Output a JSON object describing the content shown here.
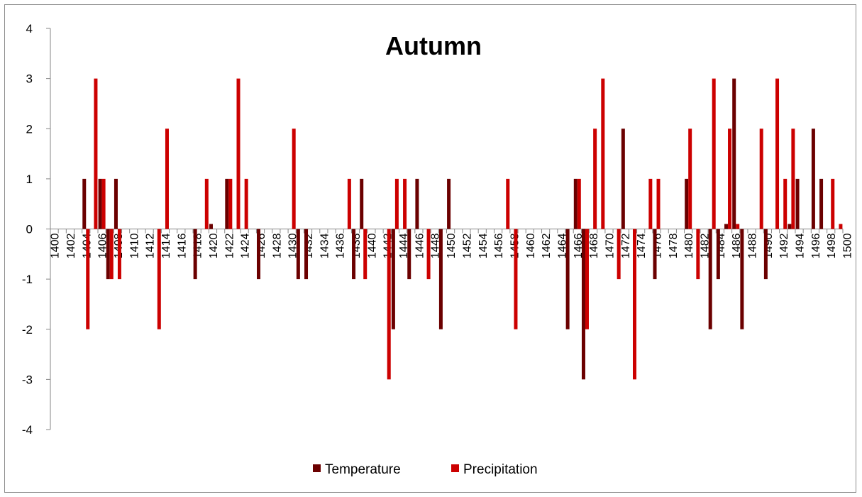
{
  "chart_data": {
    "type": "bar",
    "title": "Autumn",
    "xlabel": "",
    "ylabel": "",
    "ylim": [
      -4,
      4
    ],
    "yticks": [
      "-4",
      "-3",
      "-2",
      "-1",
      "0",
      "1",
      "2",
      "3",
      "4"
    ],
    "x_range": [
      1400,
      1500
    ],
    "x_tick_labels": [
      "1400",
      "1402",
      "1404",
      "1406",
      "1408",
      "1410",
      "1412",
      "1414",
      "1416",
      "1418",
      "1420",
      "1422",
      "1424",
      "1426",
      "1428",
      "1430",
      "1432",
      "1434",
      "1436",
      "1438",
      "1440",
      "1442",
      "1444",
      "1446",
      "1448",
      "1450",
      "1452",
      "1454",
      "1456",
      "1458",
      "1460",
      "1462",
      "1464",
      "1466",
      "1468",
      "1470",
      "1472",
      "1474",
      "1476",
      "1478",
      "1480",
      "1482",
      "1484",
      "1486",
      "1488",
      "1490",
      "1492",
      "1494",
      "1496",
      "1498",
      "1500"
    ],
    "grid": false,
    "legend_position": "bottom",
    "series": [
      {
        "name": "Temperature",
        "color": "#6b0000",
        "points": [
          {
            "x": 1404,
            "y": 1
          },
          {
            "x": 1406,
            "y": 1
          },
          {
            "x": 1407,
            "y": -1
          },
          {
            "x": 1408,
            "y": 1
          },
          {
            "x": 1418,
            "y": -1
          },
          {
            "x": 1420,
            "y": 0.1
          },
          {
            "x": 1422,
            "y": 1
          },
          {
            "x": 1426,
            "y": -1
          },
          {
            "x": 1431,
            "y": -1
          },
          {
            "x": 1432,
            "y": -1
          },
          {
            "x": 1438,
            "y": -1
          },
          {
            "x": 1439,
            "y": 1
          },
          {
            "x": 1443,
            "y": -2
          },
          {
            "x": 1445,
            "y": -1
          },
          {
            "x": 1446,
            "y": 1
          },
          {
            "x": 1449,
            "y": -2
          },
          {
            "x": 1450,
            "y": 1
          },
          {
            "x": 1465,
            "y": -2
          },
          {
            "x": 1466,
            "y": 1
          },
          {
            "x": 1467,
            "y": -3
          },
          {
            "x": 1472,
            "y": 2
          },
          {
            "x": 1476,
            "y": -1
          },
          {
            "x": 1480,
            "y": 1
          },
          {
            "x": 1483,
            "y": -2
          },
          {
            "x": 1484,
            "y": -1
          },
          {
            "x": 1485,
            "y": 0.1
          },
          {
            "x": 1486,
            "y": 3
          },
          {
            "x": 1487,
            "y": -2
          },
          {
            "x": 1490,
            "y": -1
          },
          {
            "x": 1493,
            "y": 0.1
          },
          {
            "x": 1494,
            "y": 1
          },
          {
            "x": 1496,
            "y": 2
          },
          {
            "x": 1497,
            "y": 1
          }
        ]
      },
      {
        "name": "Precipitation",
        "color": "#cc0000",
        "points": [
          {
            "x": 1404,
            "y": -2
          },
          {
            "x": 1405,
            "y": 3
          },
          {
            "x": 1406,
            "y": 1
          },
          {
            "x": 1407,
            "y": -1
          },
          {
            "x": 1408,
            "y": -1
          },
          {
            "x": 1413,
            "y": -2
          },
          {
            "x": 1414,
            "y": 2
          },
          {
            "x": 1419,
            "y": 1
          },
          {
            "x": 1422,
            "y": 1
          },
          {
            "x": 1423,
            "y": 3
          },
          {
            "x": 1424,
            "y": 1
          },
          {
            "x": 1430,
            "y": 2
          },
          {
            "x": 1437,
            "y": 1
          },
          {
            "x": 1439,
            "y": -1
          },
          {
            "x": 1442,
            "y": -3
          },
          {
            "x": 1443,
            "y": 1
          },
          {
            "x": 1444,
            "y": 1
          },
          {
            "x": 1447,
            "y": -1
          },
          {
            "x": 1457,
            "y": 1
          },
          {
            "x": 1458,
            "y": -2
          },
          {
            "x": 1466,
            "y": 1
          },
          {
            "x": 1467,
            "y": -2
          },
          {
            "x": 1468,
            "y": 2
          },
          {
            "x": 1469,
            "y": 3
          },
          {
            "x": 1471,
            "y": -1
          },
          {
            "x": 1473,
            "y": -3
          },
          {
            "x": 1475,
            "y": 1
          },
          {
            "x": 1476,
            "y": 1
          },
          {
            "x": 1480,
            "y": 2
          },
          {
            "x": 1481,
            "y": -1
          },
          {
            "x": 1483,
            "y": 3
          },
          {
            "x": 1485,
            "y": 2
          },
          {
            "x": 1486,
            "y": 0.1
          },
          {
            "x": 1489,
            "y": 2
          },
          {
            "x": 1491,
            "y": 3
          },
          {
            "x": 1492,
            "y": 1
          },
          {
            "x": 1493,
            "y": 2
          },
          {
            "x": 1498,
            "y": 1
          },
          {
            "x": 1499,
            "y": 0.1
          }
        ]
      }
    ]
  }
}
